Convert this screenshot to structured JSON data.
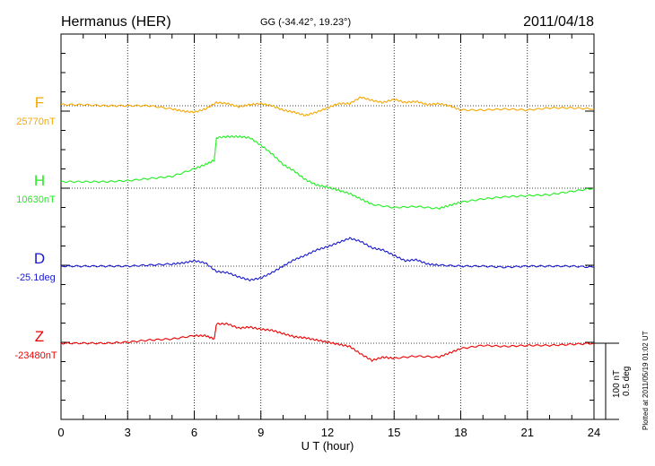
{
  "header": {
    "station": "Hermanus (HER)",
    "coords": "GG (-34.42°,  19.23°)",
    "date": "2011/04/18"
  },
  "footer": {
    "xlabel": "U T (hour)",
    "plotted": "Plotted at 2011/05/19 01:02 UT"
  },
  "scale": {
    "nt": "100 nT",
    "deg": "0.5 deg"
  },
  "chart_data": {
    "type": "line",
    "xlabel": "U T (hour)",
    "xlim": [
      0,
      24
    ],
    "xticks": [
      0,
      3,
      6,
      9,
      12,
      15,
      18,
      21,
      24
    ],
    "grid": true,
    "series": [
      {
        "name": "F",
        "baseline_label": "25770nT",
        "color": "#f5a800",
        "baseline_offset": 0,
        "points": [
          [
            0,
            1
          ],
          [
            1,
            1
          ],
          [
            2,
            0
          ],
          [
            3,
            0
          ],
          [
            4,
            0
          ],
          [
            5,
            -3
          ],
          [
            5.5,
            -5
          ],
          [
            6,
            -6
          ],
          [
            6.5,
            -3
          ],
          [
            7,
            3
          ],
          [
            7.5,
            2
          ],
          [
            8,
            -1
          ],
          [
            8.5,
            1
          ],
          [
            9,
            2
          ],
          [
            9.5,
            0
          ],
          [
            10,
            -4
          ],
          [
            10.5,
            -6
          ],
          [
            11,
            -9
          ],
          [
            11.5,
            -6
          ],
          [
            12,
            -2
          ],
          [
            12.5,
            2
          ],
          [
            13,
            2
          ],
          [
            13.5,
            8
          ],
          [
            14,
            5
          ],
          [
            14.5,
            3
          ],
          [
            15,
            6
          ],
          [
            15.5,
            3
          ],
          [
            16,
            4
          ],
          [
            16.5,
            1
          ],
          [
            17,
            2
          ],
          [
            17.5,
            0
          ],
          [
            18,
            -4
          ],
          [
            19,
            -4
          ],
          [
            20,
            -3
          ],
          [
            21,
            -4
          ],
          [
            22,
            -2
          ],
          [
            23,
            -2
          ],
          [
            24,
            -3
          ]
        ]
      },
      {
        "name": "H",
        "baseline_label": "10630nT",
        "color": "#22ee22",
        "baseline_offset": 0,
        "points": [
          [
            0,
            6
          ],
          [
            1,
            6
          ],
          [
            2,
            6
          ],
          [
            3,
            7
          ],
          [
            4,
            9
          ],
          [
            5,
            11
          ],
          [
            6,
            18
          ],
          [
            6.5,
            22
          ],
          [
            6.9,
            26
          ],
          [
            7,
            47
          ],
          [
            7.5,
            48
          ],
          [
            8,
            48
          ],
          [
            8.5,
            47
          ],
          [
            9,
            40
          ],
          [
            9.5,
            32
          ],
          [
            10,
            22
          ],
          [
            10.5,
            16
          ],
          [
            11,
            8
          ],
          [
            11.5,
            3
          ],
          [
            12,
            1
          ],
          [
            12.5,
            -2
          ],
          [
            13,
            -5
          ],
          [
            13.5,
            -10
          ],
          [
            14,
            -15
          ],
          [
            15,
            -18
          ],
          [
            16,
            -17
          ],
          [
            17,
            -19
          ],
          [
            17.5,
            -16
          ],
          [
            18,
            -13
          ],
          [
            19,
            -10
          ],
          [
            20,
            -8
          ],
          [
            21,
            -7
          ],
          [
            22,
            -6
          ],
          [
            23,
            -3
          ],
          [
            24,
            0
          ]
        ]
      },
      {
        "name": "D",
        "baseline_label": "-25.1deg",
        "color": "#1a1acc",
        "baseline_offset": 0,
        "points": [
          [
            0,
            0
          ],
          [
            1,
            0
          ],
          [
            2,
            0
          ],
          [
            3,
            0
          ],
          [
            4,
            1
          ],
          [
            5,
            2
          ],
          [
            5.5,
            3
          ],
          [
            6,
            5
          ],
          [
            6.5,
            3
          ],
          [
            7,
            -5
          ],
          [
            7.5,
            -6
          ],
          [
            8,
            -10
          ],
          [
            8.5,
            -13
          ],
          [
            9,
            -11
          ],
          [
            9.5,
            -6
          ],
          [
            10,
            0
          ],
          [
            10.5,
            6
          ],
          [
            11,
            10
          ],
          [
            11.5,
            15
          ],
          [
            12,
            18
          ],
          [
            12.5,
            22
          ],
          [
            13,
            26
          ],
          [
            13.5,
            23
          ],
          [
            14,
            17
          ],
          [
            14.5,
            15
          ],
          [
            15,
            10
          ],
          [
            15.5,
            5
          ],
          [
            16,
            6
          ],
          [
            16.5,
            2
          ],
          [
            17,
            1
          ],
          [
            18,
            0
          ],
          [
            19,
            0
          ],
          [
            20,
            -1
          ],
          [
            21,
            0
          ],
          [
            22,
            0
          ],
          [
            23,
            0
          ],
          [
            24,
            -1
          ]
        ]
      },
      {
        "name": "Z",
        "baseline_label": "-23480nT",
        "color": "#ee0000",
        "baseline_offset": 0,
        "points": [
          [
            0,
            0
          ],
          [
            1,
            0
          ],
          [
            2,
            0
          ],
          [
            3,
            1
          ],
          [
            4,
            3
          ],
          [
            5,
            4
          ],
          [
            6,
            7
          ],
          [
            6.5,
            7
          ],
          [
            6.9,
            4
          ],
          [
            7,
            18
          ],
          [
            7.5,
            18
          ],
          [
            8,
            14
          ],
          [
            8.5,
            15
          ],
          [
            9,
            13
          ],
          [
            9.5,
            12
          ],
          [
            10,
            9
          ],
          [
            10.5,
            6
          ],
          [
            11,
            5
          ],
          [
            11.5,
            3
          ],
          [
            12,
            1
          ],
          [
            12.5,
            -1
          ],
          [
            13,
            -3
          ],
          [
            13.5,
            -10
          ],
          [
            14,
            -16
          ],
          [
            14.5,
            -13
          ],
          [
            15,
            -14
          ],
          [
            16,
            -12
          ],
          [
            17,
            -13
          ],
          [
            17.5,
            -9
          ],
          [
            18,
            -5
          ],
          [
            19,
            -2
          ],
          [
            20,
            -3
          ],
          [
            21,
            -2
          ],
          [
            22,
            -2
          ],
          [
            23,
            -1
          ],
          [
            24,
            0
          ]
        ]
      }
    ]
  }
}
